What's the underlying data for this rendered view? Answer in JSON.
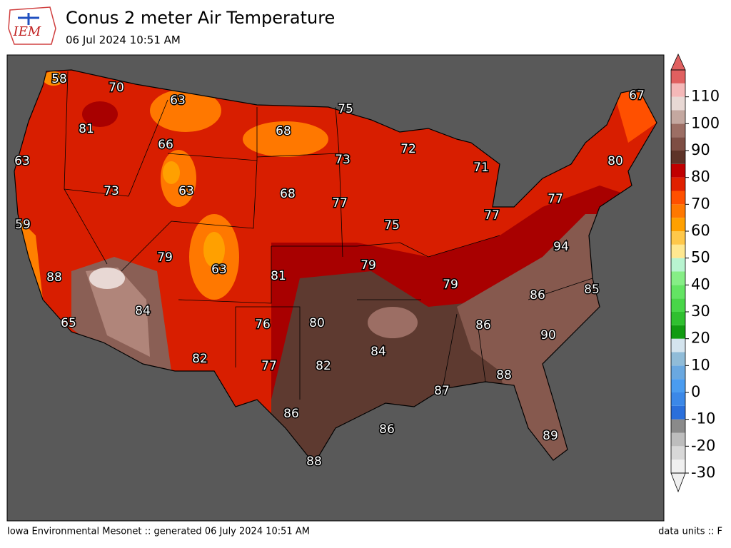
{
  "title": "Conus 2 meter Air Temperature",
  "subtitle": "06 Jul 2024 10:51 AM",
  "logo_text": "IEM",
  "footer_left": "Iowa Environmental Mesonet :: generated 06 July 2024 10:51 AM",
  "footer_right": "data units :: F",
  "stations": [
    58,
    70,
    63,
    75,
    67,
    81,
    68,
    66,
    72,
    73,
    80,
    63,
    71,
    63,
    73,
    68,
    77,
    77,
    77,
    59,
    75,
    94,
    79,
    63,
    81,
    79,
    88,
    79,
    85,
    84,
    86,
    80,
    76,
    86,
    65,
    90,
    84,
    82,
    77,
    82,
    88,
    87,
    86,
    86,
    89,
    88
  ],
  "colorbar": {
    "lim": [
      -30,
      120
    ],
    "ticks": [
      -30,
      -20,
      -10,
      0,
      10,
      20,
      30,
      40,
      50,
      60,
      70,
      80,
      90,
      100,
      110
    ],
    "colors": [
      "#f0f0f0",
      "#d8d8d8",
      "#bdbdbd",
      "#8a8a8a",
      "#2a6fdb",
      "#3b88e8",
      "#4a9cf0",
      "#6aa8e0",
      "#90bcd8",
      "#d4e4ee",
      "#119b11",
      "#2fc02f",
      "#48d648",
      "#63e463",
      "#86ee86",
      "#b8f4d0",
      "#ffe890",
      "#ffc84a",
      "#ffa000",
      "#ff7800",
      "#ff5000",
      "#e02000",
      "#c00000",
      "#5e3328",
      "#7e4e44",
      "#9c6e64",
      "#c4a8a0",
      "#e8d8d4",
      "#f4b8b8",
      "#e06060"
    ]
  }
}
